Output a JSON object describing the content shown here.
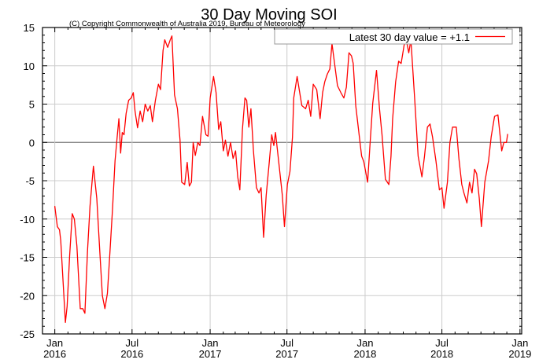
{
  "chart_data": {
    "type": "line",
    "title": "30 Day Moving SOI",
    "subtitle": "(C) Copyright Commonwealth of Australia 2019, Bureau of Meteorology",
    "xlabel": "",
    "ylabel": "",
    "ylim": [
      -25,
      15
    ],
    "yticks": [
      15,
      10,
      5,
      0,
      -5,
      -10,
      -15,
      -20,
      -25
    ],
    "xlim": [
      "2015-12-03",
      "2019-01-05"
    ],
    "xticks": [
      {
        "date": "2016-01-01",
        "line1": "Jan",
        "line2": "2016"
      },
      {
        "date": "2016-07-01",
        "line1": "Jul",
        "line2": "2016"
      },
      {
        "date": "2017-01-01",
        "line1": "Jan",
        "line2": "2017"
      },
      {
        "date": "2017-07-01",
        "line1": "Jul",
        "line2": "2017"
      },
      {
        "date": "2018-01-01",
        "line1": "Jan",
        "line2": "2018"
      },
      {
        "date": "2018-07-01",
        "line1": "Jul",
        "line2": "2018"
      },
      {
        "date": "2019-01-01",
        "line1": "Jan",
        "line2": "2019"
      }
    ],
    "grid": true,
    "legend": {
      "position": "top-right",
      "label": "Latest 30 day value = +1.1"
    },
    "series": [
      {
        "name": "Latest 30 day value = +1.1",
        "color": "#ff0000",
        "points": [
          [
            "2016-01-01",
            -8.3
          ],
          [
            "2016-01-07",
            -11
          ],
          [
            "2016-01-12",
            -11.4
          ],
          [
            "2016-01-15",
            -12.8
          ],
          [
            "2016-01-21",
            -18.6
          ],
          [
            "2016-01-26",
            -23.5
          ],
          [
            "2016-01-30",
            -21.4
          ],
          [
            "2016-02-05",
            -14.8
          ],
          [
            "2016-02-11",
            -9.3
          ],
          [
            "2016-02-16",
            -10
          ],
          [
            "2016-02-22",
            -13.5
          ],
          [
            "2016-03-01",
            -21.7
          ],
          [
            "2016-03-07",
            -21.7
          ],
          [
            "2016-03-12",
            -22.3
          ],
          [
            "2016-03-18",
            -14.2
          ],
          [
            "2016-03-24",
            -8.3
          ],
          [
            "2016-04-01",
            -3.1
          ],
          [
            "2016-04-09",
            -7.3
          ],
          [
            "2016-04-16",
            -14.2
          ],
          [
            "2016-04-22",
            -20
          ],
          [
            "2016-04-28",
            -21.7
          ],
          [
            "2016-05-04",
            -19.7
          ],
          [
            "2016-05-10",
            -14.2
          ],
          [
            "2016-05-16",
            -8.7
          ],
          [
            "2016-05-22",
            -2.4
          ],
          [
            "2016-05-27",
            0.7
          ],
          [
            "2016-05-31",
            3.1
          ],
          [
            "2016-06-04",
            -1.4
          ],
          [
            "2016-06-08",
            1.3
          ],
          [
            "2016-06-12",
            1
          ],
          [
            "2016-06-17",
            3.8
          ],
          [
            "2016-06-23",
            5.5
          ],
          [
            "2016-06-29",
            5.8
          ],
          [
            "2016-07-04",
            6.5
          ],
          [
            "2016-07-08",
            4.1
          ],
          [
            "2016-07-14",
            1.9
          ],
          [
            "2016-07-20",
            4.1
          ],
          [
            "2016-07-26",
            2.7
          ],
          [
            "2016-08-01",
            5
          ],
          [
            "2016-08-07",
            4.1
          ],
          [
            "2016-08-13",
            4.8
          ],
          [
            "2016-08-18",
            2.7
          ],
          [
            "2016-08-25",
            5.5
          ],
          [
            "2016-09-01",
            7.6
          ],
          [
            "2016-09-06",
            6.9
          ],
          [
            "2016-09-12",
            12
          ],
          [
            "2016-09-16",
            13.4
          ],
          [
            "2016-09-23",
            12.4
          ],
          [
            "2016-09-29",
            13.4
          ],
          [
            "2016-10-03",
            13.9
          ],
          [
            "2016-10-09",
            6.2
          ],
          [
            "2016-10-16",
            4.4
          ],
          [
            "2016-10-22",
            0.3
          ],
          [
            "2016-10-26",
            -5.2
          ],
          [
            "2016-11-02",
            -5.5
          ],
          [
            "2016-11-08",
            -2.6
          ],
          [
            "2016-11-13",
            -5.7
          ],
          [
            "2016-11-18",
            -5.2
          ],
          [
            "2016-11-22",
            0
          ],
          [
            "2016-11-27",
            -1.7
          ],
          [
            "2016-12-03",
            0
          ],
          [
            "2016-12-08",
            -0.4
          ],
          [
            "2016-12-14",
            3.4
          ],
          [
            "2016-12-22",
            1
          ],
          [
            "2016-12-27",
            0.8
          ],
          [
            "2017-01-01",
            5.8
          ],
          [
            "2017-01-09",
            8.6
          ],
          [
            "2017-01-15",
            6.5
          ],
          [
            "2017-01-21",
            1.7
          ],
          [
            "2017-01-26",
            2.7
          ],
          [
            "2017-02-01",
            -1.1
          ],
          [
            "2017-02-06",
            0.3
          ],
          [
            "2017-02-12",
            -1.8
          ],
          [
            "2017-02-18",
            0
          ],
          [
            "2017-02-24",
            -2.1
          ],
          [
            "2017-03-02",
            -1.1
          ],
          [
            "2017-03-07",
            -4.5
          ],
          [
            "2017-03-12",
            -6.2
          ],
          [
            "2017-03-18",
            1.7
          ],
          [
            "2017-03-24",
            5.8
          ],
          [
            "2017-03-28",
            5.5
          ],
          [
            "2017-04-02",
            2
          ],
          [
            "2017-04-07",
            4.4
          ],
          [
            "2017-04-13",
            -1.1
          ],
          [
            "2017-04-20",
            -5.9
          ],
          [
            "2017-04-26",
            -6.6
          ],
          [
            "2017-05-01",
            -5.9
          ],
          [
            "2017-05-07",
            -12.4
          ],
          [
            "2017-05-13",
            -6.9
          ],
          [
            "2017-05-20",
            -2.8
          ],
          [
            "2017-05-26",
            1
          ],
          [
            "2017-05-31",
            -0.4
          ],
          [
            "2017-06-04",
            1.3
          ],
          [
            "2017-06-12",
            -2.8
          ],
          [
            "2017-06-20",
            -6.9
          ],
          [
            "2017-06-25",
            -11
          ],
          [
            "2017-07-02",
            -5.5
          ],
          [
            "2017-07-08",
            -3.8
          ],
          [
            "2017-07-14",
            0.7
          ],
          [
            "2017-07-17",
            5.8
          ],
          [
            "2017-07-25",
            8.6
          ],
          [
            "2017-07-31",
            6.5
          ],
          [
            "2017-08-05",
            4.8
          ],
          [
            "2017-08-14",
            4.4
          ],
          [
            "2017-08-20",
            5.5
          ],
          [
            "2017-08-26",
            3.4
          ],
          [
            "2017-09-01",
            7.6
          ],
          [
            "2017-09-09",
            6.9
          ],
          [
            "2017-09-17",
            3.1
          ],
          [
            "2017-09-23",
            6.5
          ],
          [
            "2017-09-28",
            7.9
          ],
          [
            "2017-10-04",
            8.9
          ],
          [
            "2017-10-10",
            9.6
          ],
          [
            "2017-10-15",
            12.9
          ],
          [
            "2017-10-22",
            9.9
          ],
          [
            "2017-10-28",
            7.4
          ],
          [
            "2017-11-05",
            6.5
          ],
          [
            "2017-11-12",
            5.8
          ],
          [
            "2017-11-18",
            7.2
          ],
          [
            "2017-11-24",
            11.7
          ],
          [
            "2017-11-30",
            11.3
          ],
          [
            "2017-12-04",
            10.3
          ],
          [
            "2017-12-10",
            4.8
          ],
          [
            "2017-12-18",
            1
          ],
          [
            "2017-12-24",
            -1.8
          ],
          [
            "2017-12-29",
            -2.5
          ],
          [
            "2018-01-07",
            -5.2
          ],
          [
            "2018-01-13",
            0
          ],
          [
            "2018-01-19",
            5.1
          ],
          [
            "2018-01-28",
            9.4
          ],
          [
            "2018-02-04",
            4.4
          ],
          [
            "2018-02-10",
            1
          ],
          [
            "2018-02-18",
            -4.8
          ],
          [
            "2018-02-26",
            -5.5
          ],
          [
            "2018-03-03",
            -1.8
          ],
          [
            "2018-03-07",
            3.1
          ],
          [
            "2018-03-14",
            7.9
          ],
          [
            "2018-03-21",
            10.6
          ],
          [
            "2018-03-27",
            10.3
          ],
          [
            "2018-04-03",
            12.7
          ],
          [
            "2018-04-08",
            13.4
          ],
          [
            "2018-04-14",
            11.7
          ],
          [
            "2018-04-19",
            13.4
          ],
          [
            "2018-04-28",
            5.5
          ],
          [
            "2018-05-06",
            -1.8
          ],
          [
            "2018-05-15",
            -4.5
          ],
          [
            "2018-05-21",
            -1.8
          ],
          [
            "2018-05-28",
            2
          ],
          [
            "2018-06-03",
            2.4
          ],
          [
            "2018-06-09",
            0.7
          ],
          [
            "2018-06-17",
            -2.4
          ],
          [
            "2018-06-25",
            -6.2
          ],
          [
            "2018-07-01",
            -5.9
          ],
          [
            "2018-07-06",
            -8.6
          ],
          [
            "2018-07-14",
            -5.2
          ],
          [
            "2018-07-20",
            0
          ],
          [
            "2018-07-26",
            2
          ],
          [
            "2018-08-04",
            2
          ],
          [
            "2018-08-10",
            -2.1
          ],
          [
            "2018-08-17",
            -5.5
          ],
          [
            "2018-08-22",
            -6.6
          ],
          [
            "2018-08-29",
            -7.9
          ],
          [
            "2018-09-04",
            -5.2
          ],
          [
            "2018-09-10",
            -6.6
          ],
          [
            "2018-09-16",
            -3.5
          ],
          [
            "2018-09-21",
            -4.1
          ],
          [
            "2018-09-27",
            -7.3
          ],
          [
            "2018-10-02",
            -11
          ],
          [
            "2018-10-10",
            -5.2
          ],
          [
            "2018-10-19",
            -2.4
          ],
          [
            "2018-10-25",
            0.7
          ],
          [
            "2018-11-02",
            3.4
          ],
          [
            "2018-11-10",
            3.6
          ],
          [
            "2018-11-19",
            -1.1
          ],
          [
            "2018-11-24",
            0
          ],
          [
            "2018-11-30",
            0
          ],
          [
            "2018-12-03",
            1.1
          ]
        ]
      }
    ]
  }
}
